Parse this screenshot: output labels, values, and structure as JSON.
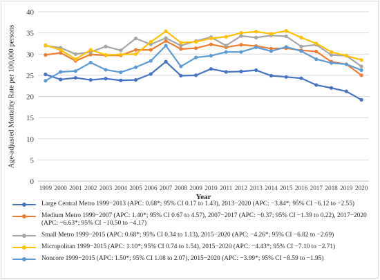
{
  "chart_data": {
    "type": "line",
    "title": "",
    "xlabel": "Year",
    "ylabel": "Age-adjusted Mortality Rate per 100,000 persons",
    "ylim": [
      0,
      40
    ],
    "yticks": [
      0,
      5,
      10,
      15,
      20,
      25,
      30,
      35,
      40
    ],
    "grid": "horizontal",
    "legend_position": "bottom",
    "x": [
      "1999",
      "2000",
      "2001",
      "2002",
      "2003",
      "2004",
      "2005",
      "2006",
      "2007",
      "2008",
      "2009",
      "2010",
      "2011",
      "2012",
      "2013",
      "2014",
      "2015",
      "2016",
      "2017",
      "2018",
      "2019",
      "2020"
    ],
    "series": [
      {
        "name": "Large Central Metro 1999−2013 (APC: 0.68*; 95% CI 0.17 to 1.43), 2013−2020 (APC: −3.84*; 95% CI −6.12 to −2.55)",
        "color": "#4472C4",
        "values": [
          25.2,
          24.0,
          24.4,
          23.9,
          24.2,
          23.8,
          23.9,
          25.3,
          28.2,
          24.9,
          25.0,
          26.5,
          25.8,
          25.9,
          26.2,
          24.9,
          24.6,
          24.3,
          22.7,
          22.0,
          21.2,
          19.2
        ]
      },
      {
        "name": "Medium Metro 1999−2007 (APC: 1.40*; 95% CI 0.67 to 4.57), 2007−2017 (APC: −0.37; 95% CI −1.39 to 0.22), 2017−2020 (APC: −6.63*; 95% CI −10.50 to −4.17)",
        "color": "#ED7D31",
        "values": [
          29.8,
          30.3,
          28.4,
          29.9,
          29.7,
          29.7,
          31.0,
          31.0,
          33.1,
          31.2,
          31.4,
          32.3,
          31.6,
          32.2,
          31.9,
          31.3,
          31.4,
          30.9,
          30.6,
          28.2,
          27.6,
          25.0
        ]
      },
      {
        "name": "Small Metro 1999−2015 (APC: 0.68*; 95% CI 0.34 to 1.13), 2015−2020 (APC: −4.26*; 95% CI −6.82 to −2.69)",
        "color": "#A5A5A5",
        "values": [
          32.0,
          31.5,
          30.0,
          30.5,
          31.8,
          30.9,
          33.7,
          32.3,
          33.8,
          32.0,
          33.1,
          34.0,
          32.0,
          34.3,
          33.9,
          34.4,
          34.2,
          31.8,
          32.2,
          29.8,
          29.6,
          27.1
        ]
      },
      {
        "name": "Micropolitan 1999−2015 (APC: 1.10*; 95% CI 0.74 to 1.54), 2015−2020 (APC: −4.43*; 95% CI −7.10 to −2.71)",
        "color": "#FFC000",
        "values": [
          32.1,
          31.0,
          28.8,
          31.0,
          29.8,
          29.9,
          30.0,
          32.9,
          35.4,
          32.7,
          32.9,
          33.7,
          34.1,
          35.0,
          35.3,
          34.8,
          35.5,
          33.9,
          32.5,
          30.5,
          29.6,
          28.6
        ]
      },
      {
        "name": "Noncore 1999−2015 (APC: 1.50*; 95% CI 1.08 to 2.07), 2015−2020 (APC: −3.99*; 95% CI −8.59 to −1.95)",
        "color": "#5B9BD5",
        "values": [
          23.7,
          25.8,
          26.0,
          28.0,
          26.3,
          25.7,
          26.9,
          28.4,
          32.0,
          27.1,
          29.2,
          29.6,
          30.5,
          30.5,
          31.6,
          30.7,
          31.7,
          30.7,
          28.8,
          27.9,
          27.6,
          26.2
        ]
      }
    ]
  }
}
